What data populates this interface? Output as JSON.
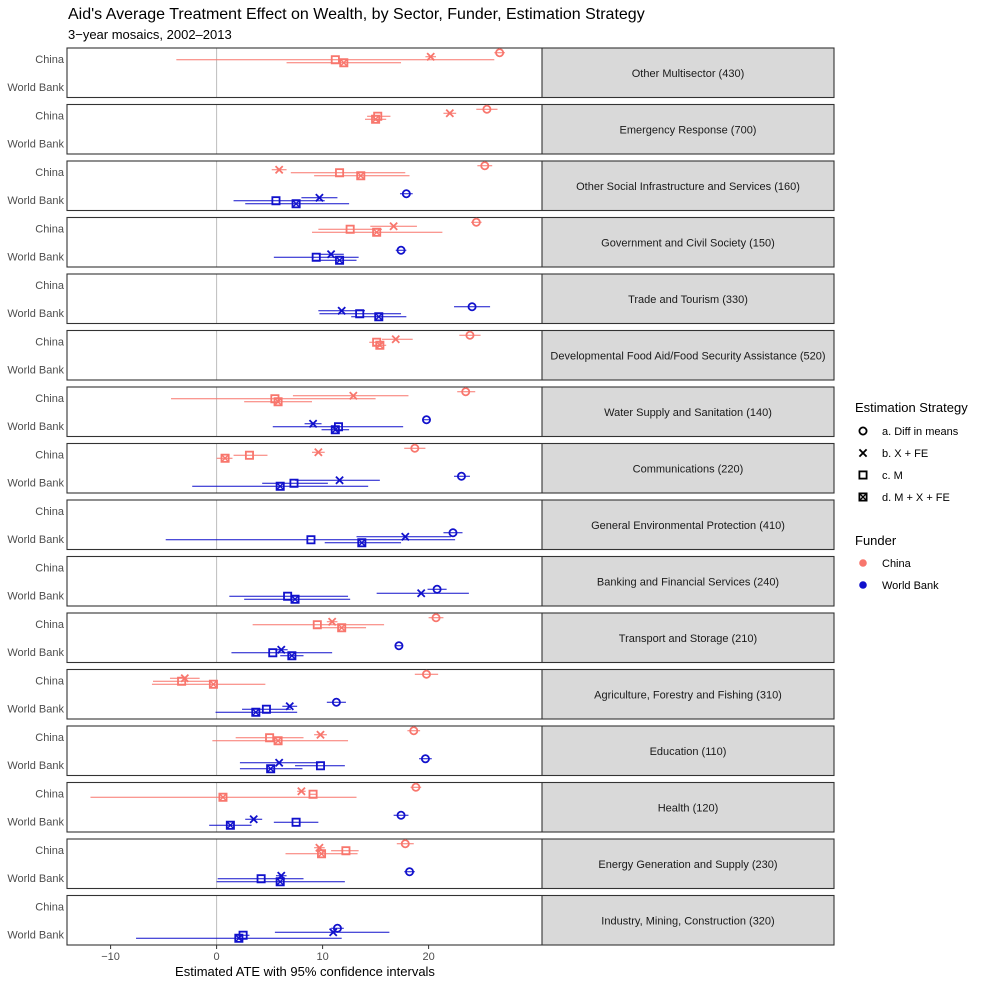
{
  "chart_data": {
    "type": "scatter",
    "title": "Aid's Average Treatment Effect on Wealth, by Sector, Funder, Estimation Strategy",
    "subtitle": "3−year mosaics, 2002–2013",
    "xlabel": "Estimated ATE with 95% confidence intervals",
    "xlim": [
      -14,
      30
    ],
    "xticks": [
      -10,
      0,
      10,
      20
    ],
    "xtick_labels": [
      "−10",
      "0",
      "10",
      "20"
    ],
    "reference_line": 0,
    "funders": [
      "China",
      "World Bank"
    ],
    "funder_colors": {
      "China": "#f8766d",
      "World Bank": "#1111cc"
    },
    "strategies": [
      {
        "key": "a",
        "label": "a. Diff in means",
        "shape": "circle"
      },
      {
        "key": "b",
        "label": "b. X + FE",
        "shape": "cross"
      },
      {
        "key": "c",
        "label": "c. M",
        "shape": "square"
      },
      {
        "key": "d",
        "label": "d. M + X + FE",
        "shape": "square-cross"
      }
    ],
    "legend": {
      "strategy_title": "Estimation Strategy",
      "funder_title": "Funder",
      "position": "right"
    },
    "panels": [
      {
        "sector": "Other Multisector (430)",
        "points": [
          {
            "funder": "China",
            "strategy": "a",
            "est": 26.7,
            "lo": 26.2,
            "hi": 27.2
          },
          {
            "funder": "China",
            "strategy": "b",
            "est": 20.2,
            "lo": 19.7,
            "hi": 20.7
          },
          {
            "funder": "China",
            "strategy": "c",
            "est": 11.2,
            "lo": -3.8,
            "hi": 26.2
          },
          {
            "funder": "China",
            "strategy": "d",
            "est": 12.0,
            "lo": 6.6,
            "hi": 17.4
          }
        ]
      },
      {
        "sector": "Emergency Response (700)",
        "points": [
          {
            "funder": "China",
            "strategy": "a",
            "est": 25.5,
            "lo": 24.5,
            "hi": 26.5
          },
          {
            "funder": "China",
            "strategy": "b",
            "est": 22.0,
            "lo": 21.4,
            "hi": 22.6
          },
          {
            "funder": "China",
            "strategy": "c",
            "est": 15.2,
            "lo": 14.2,
            "hi": 16.4
          },
          {
            "funder": "China",
            "strategy": "d",
            "est": 15.0,
            "lo": 14.0,
            "hi": 16.0
          }
        ]
      },
      {
        "sector": "Other Social Infrastructure and Services (160)",
        "points": [
          {
            "funder": "China",
            "strategy": "a",
            "est": 25.3,
            "lo": 24.6,
            "hi": 26.0
          },
          {
            "funder": "China",
            "strategy": "b",
            "est": 5.9,
            "lo": 5.2,
            "hi": 6.6
          },
          {
            "funder": "China",
            "strategy": "c",
            "est": 11.6,
            "lo": 7.0,
            "hi": 17.8
          },
          {
            "funder": "China",
            "strategy": "d",
            "est": 13.6,
            "lo": 9.2,
            "hi": 18.2
          },
          {
            "funder": "World Bank",
            "strategy": "a",
            "est": 17.9,
            "lo": 17.3,
            "hi": 18.5
          },
          {
            "funder": "World Bank",
            "strategy": "b",
            "est": 9.7,
            "lo": 8.0,
            "hi": 11.4
          },
          {
            "funder": "World Bank",
            "strategy": "c",
            "est": 5.6,
            "lo": 1.6,
            "hi": 10.2
          },
          {
            "funder": "World Bank",
            "strategy": "d",
            "est": 7.5,
            "lo": 2.7,
            "hi": 12.5
          }
        ]
      },
      {
        "sector": "Government and Civil Society (150)",
        "points": [
          {
            "funder": "China",
            "strategy": "a",
            "est": 24.5,
            "lo": 24.0,
            "hi": 25.0
          },
          {
            "funder": "China",
            "strategy": "b",
            "est": 16.7,
            "lo": 14.5,
            "hi": 18.9
          },
          {
            "funder": "China",
            "strategy": "c",
            "est": 12.6,
            "lo": 9.6,
            "hi": 15.6
          },
          {
            "funder": "China",
            "strategy": "d",
            "est": 15.1,
            "lo": 9.0,
            "hi": 21.3
          },
          {
            "funder": "World Bank",
            "strategy": "a",
            "est": 17.4,
            "lo": 16.9,
            "hi": 17.9
          },
          {
            "funder": "World Bank",
            "strategy": "b",
            "est": 10.8,
            "lo": 9.6,
            "hi": 12.0
          },
          {
            "funder": "World Bank",
            "strategy": "c",
            "est": 9.4,
            "lo": 5.4,
            "hi": 13.4
          },
          {
            "funder": "World Bank",
            "strategy": "d",
            "est": 11.6,
            "lo": 9.2,
            "hi": 13.2
          }
        ]
      },
      {
        "sector": "Trade and Tourism (330)",
        "points": [
          {
            "funder": "World Bank",
            "strategy": "a",
            "est": 24.1,
            "lo": 22.4,
            "hi": 25.8
          },
          {
            "funder": "World Bank",
            "strategy": "b",
            "est": 11.8,
            "lo": 9.6,
            "hi": 14.0
          },
          {
            "funder": "World Bank",
            "strategy": "c",
            "est": 13.5,
            "lo": 9.7,
            "hi": 17.4
          },
          {
            "funder": "World Bank",
            "strategy": "d",
            "est": 15.3,
            "lo": 12.7,
            "hi": 17.9
          }
        ]
      },
      {
        "sector": "Developmental Food Aid/Food Security Assistance (520)",
        "points": [
          {
            "funder": "China",
            "strategy": "a",
            "est": 23.9,
            "lo": 22.9,
            "hi": 24.9
          },
          {
            "funder": "China",
            "strategy": "b",
            "est": 16.9,
            "lo": 15.6,
            "hi": 18.5
          },
          {
            "funder": "China",
            "strategy": "c",
            "est": 15.1,
            "lo": 14.4,
            "hi": 15.8
          },
          {
            "funder": "China",
            "strategy": "d",
            "est": 15.4,
            "lo": 14.8,
            "hi": 16.0
          }
        ]
      },
      {
        "sector": "Water Supply and Sanitation (140)",
        "points": [
          {
            "funder": "China",
            "strategy": "a",
            "est": 23.5,
            "lo": 22.7,
            "hi": 24.4
          },
          {
            "funder": "China",
            "strategy": "b",
            "est": 12.9,
            "lo": 7.2,
            "hi": 18.1
          },
          {
            "funder": "China",
            "strategy": "c",
            "est": 5.5,
            "lo": -4.3,
            "hi": 15.0
          },
          {
            "funder": "China",
            "strategy": "d",
            "est": 5.8,
            "lo": 2.6,
            "hi": 9.0
          },
          {
            "funder": "World Bank",
            "strategy": "a",
            "est": 19.8,
            "lo": 19.4,
            "hi": 20.2
          },
          {
            "funder": "World Bank",
            "strategy": "b",
            "est": 9.1,
            "lo": 8.3,
            "hi": 9.9
          },
          {
            "funder": "World Bank",
            "strategy": "c",
            "est": 11.5,
            "lo": 5.3,
            "hi": 17.6
          },
          {
            "funder": "World Bank",
            "strategy": "d",
            "est": 11.2,
            "lo": 9.9,
            "hi": 12.5
          }
        ]
      },
      {
        "sector": "Communications (220)",
        "points": [
          {
            "funder": "China",
            "strategy": "a",
            "est": 18.7,
            "lo": 17.7,
            "hi": 19.7
          },
          {
            "funder": "China",
            "strategy": "b",
            "est": 9.6,
            "lo": 9.0,
            "hi": 10.2
          },
          {
            "funder": "China",
            "strategy": "c",
            "est": 3.1,
            "lo": 1.6,
            "hi": 4.8
          },
          {
            "funder": "China",
            "strategy": "d",
            "est": 0.8,
            "lo": 0.0,
            "hi": 1.5
          },
          {
            "funder": "World Bank",
            "strategy": "a",
            "est": 23.1,
            "lo": 22.4,
            "hi": 23.9
          },
          {
            "funder": "World Bank",
            "strategy": "b",
            "est": 11.6,
            "lo": 7.4,
            "hi": 15.4
          },
          {
            "funder": "World Bank",
            "strategy": "c",
            "est": 7.3,
            "lo": 4.3,
            "hi": 10.5
          },
          {
            "funder": "World Bank",
            "strategy": "d",
            "est": 6.0,
            "lo": -2.3,
            "hi": 14.3
          }
        ]
      },
      {
        "sector": "General Environmental Protection (410)",
        "points": [
          {
            "funder": "World Bank",
            "strategy": "a",
            "est": 22.3,
            "lo": 21.4,
            "hi": 23.2
          },
          {
            "funder": "World Bank",
            "strategy": "b",
            "est": 17.8,
            "lo": 13.2,
            "hi": 22.1
          },
          {
            "funder": "World Bank",
            "strategy": "c",
            "est": 8.9,
            "lo": -4.8,
            "hi": 22.5
          },
          {
            "funder": "World Bank",
            "strategy": "d",
            "est": 13.7,
            "lo": 10.2,
            "hi": 17.4
          }
        ]
      },
      {
        "sector": "Banking and Financial Services (240)",
        "points": [
          {
            "funder": "World Bank",
            "strategy": "a",
            "est": 20.8,
            "lo": 19.9,
            "hi": 21.7
          },
          {
            "funder": "World Bank",
            "strategy": "b",
            "est": 19.3,
            "lo": 15.1,
            "hi": 23.8
          },
          {
            "funder": "World Bank",
            "strategy": "c",
            "est": 6.7,
            "lo": 1.2,
            "hi": 12.4
          },
          {
            "funder": "World Bank",
            "strategy": "d",
            "est": 7.4,
            "lo": 2.6,
            "hi": 12.6
          }
        ]
      },
      {
        "sector": "Transport and Storage (210)",
        "points": [
          {
            "funder": "China",
            "strategy": "a",
            "est": 20.7,
            "lo": 20.0,
            "hi": 21.4
          },
          {
            "funder": "China",
            "strategy": "b",
            "est": 10.9,
            "lo": 10.4,
            "hi": 11.4
          },
          {
            "funder": "China",
            "strategy": "c",
            "est": 9.5,
            "lo": 3.4,
            "hi": 15.8
          },
          {
            "funder": "China",
            "strategy": "d",
            "est": 11.8,
            "lo": 9.3,
            "hi": 14.1
          },
          {
            "funder": "World Bank",
            "strategy": "a",
            "est": 17.2,
            "lo": 16.9,
            "hi": 17.5
          },
          {
            "funder": "World Bank",
            "strategy": "b",
            "est": 6.1,
            "lo": 5.5,
            "hi": 6.7
          },
          {
            "funder": "World Bank",
            "strategy": "c",
            "est": 5.3,
            "lo": 1.4,
            "hi": 10.9
          },
          {
            "funder": "World Bank",
            "strategy": "d",
            "est": 7.1,
            "lo": 6.0,
            "hi": 8.2
          }
        ]
      },
      {
        "sector": "Agriculture, Forestry and Fishing (310)",
        "points": [
          {
            "funder": "China",
            "strategy": "a",
            "est": 19.8,
            "lo": 18.7,
            "hi": 20.9
          },
          {
            "funder": "China",
            "strategy": "b",
            "est": -3.0,
            "lo": -4.4,
            "hi": -1.6
          },
          {
            "funder": "China",
            "strategy": "c",
            "est": -3.3,
            "lo": -6.0,
            "hi": -0.6
          },
          {
            "funder": "China",
            "strategy": "d",
            "est": -0.3,
            "lo": -6.1,
            "hi": 4.6
          },
          {
            "funder": "World Bank",
            "strategy": "a",
            "est": 11.3,
            "lo": 10.4,
            "hi": 12.2
          },
          {
            "funder": "World Bank",
            "strategy": "b",
            "est": 6.9,
            "lo": 6.2,
            "hi": 7.6
          },
          {
            "funder": "World Bank",
            "strategy": "c",
            "est": 4.7,
            "lo": 2.4,
            "hi": 7.0
          },
          {
            "funder": "World Bank",
            "strategy": "d",
            "est": 3.7,
            "lo": -0.1,
            "hi": 7.6
          }
        ]
      },
      {
        "sector": "Education (110)",
        "points": [
          {
            "funder": "China",
            "strategy": "a",
            "est": 18.6,
            "lo": 18.0,
            "hi": 19.2
          },
          {
            "funder": "China",
            "strategy": "b",
            "est": 9.8,
            "lo": 9.2,
            "hi": 10.4
          },
          {
            "funder": "China",
            "strategy": "c",
            "est": 5.0,
            "lo": 1.8,
            "hi": 8.2
          },
          {
            "funder": "China",
            "strategy": "d",
            "est": 5.8,
            "lo": -0.4,
            "hi": 12.4
          },
          {
            "funder": "World Bank",
            "strategy": "a",
            "est": 19.7,
            "lo": 19.1,
            "hi": 20.3
          },
          {
            "funder": "World Bank",
            "strategy": "b",
            "est": 5.9,
            "lo": 2.2,
            "hi": 9.7
          },
          {
            "funder": "World Bank",
            "strategy": "c",
            "est": 9.8,
            "lo": 7.4,
            "hi": 12.1
          },
          {
            "funder": "World Bank",
            "strategy": "d",
            "est": 5.1,
            "lo": 2.2,
            "hi": 8.1
          }
        ]
      },
      {
        "sector": "Health (120)",
        "points": [
          {
            "funder": "China",
            "strategy": "a",
            "est": 18.8,
            "lo": 18.3,
            "hi": 19.3
          },
          {
            "funder": "China",
            "strategy": "b",
            "est": 8.0,
            "lo": 7.6,
            "hi": 8.4
          },
          {
            "funder": "China",
            "strategy": "c",
            "est": 9.1,
            "lo": 8.7,
            "hi": 9.5
          },
          {
            "funder": "China",
            "strategy": "d",
            "est": 0.6,
            "lo": -11.9,
            "hi": 13.2
          },
          {
            "funder": "World Bank",
            "strategy": "a",
            "est": 17.4,
            "lo": 16.7,
            "hi": 18.1
          },
          {
            "funder": "World Bank",
            "strategy": "b",
            "est": 3.5,
            "lo": 2.7,
            "hi": 4.3
          },
          {
            "funder": "World Bank",
            "strategy": "c",
            "est": 7.5,
            "lo": 5.4,
            "hi": 9.6
          },
          {
            "funder": "World Bank",
            "strategy": "d",
            "est": 1.3,
            "lo": -0.7,
            "hi": 3.3
          }
        ]
      },
      {
        "sector": "Energy Generation and Supply (230)",
        "points": [
          {
            "funder": "China",
            "strategy": "a",
            "est": 17.8,
            "lo": 17.0,
            "hi": 18.6
          },
          {
            "funder": "China",
            "strategy": "b",
            "est": 9.7,
            "lo": 9.2,
            "hi": 10.2
          },
          {
            "funder": "China",
            "strategy": "c",
            "est": 12.2,
            "lo": 10.8,
            "hi": 13.4
          },
          {
            "funder": "China",
            "strategy": "d",
            "est": 9.9,
            "lo": 6.5,
            "hi": 13.3
          },
          {
            "funder": "World Bank",
            "strategy": "a",
            "est": 18.2,
            "lo": 17.7,
            "hi": 18.7
          },
          {
            "funder": "World Bank",
            "strategy": "b",
            "est": 6.1,
            "lo": 5.6,
            "hi": 6.6
          },
          {
            "funder": "World Bank",
            "strategy": "c",
            "est": 4.2,
            "lo": 0.1,
            "hi": 8.2
          },
          {
            "funder": "World Bank",
            "strategy": "d",
            "est": 6.0,
            "lo": 0.0,
            "hi": 12.1
          }
        ]
      },
      {
        "sector": "Industry, Mining, Construction (320)",
        "points": [
          {
            "funder": "World Bank",
            "strategy": "a",
            "est": 11.4,
            "lo": 10.8,
            "hi": 12.0
          },
          {
            "funder": "World Bank",
            "strategy": "b",
            "est": 11.0,
            "lo": 5.5,
            "hi": 16.3
          },
          {
            "funder": "World Bank",
            "strategy": "c",
            "est": 2.5,
            "lo": 1.9,
            "hi": 3.1
          },
          {
            "funder": "World Bank",
            "strategy": "d",
            "est": 2.1,
            "lo": -7.6,
            "hi": 11.8
          }
        ]
      }
    ]
  }
}
